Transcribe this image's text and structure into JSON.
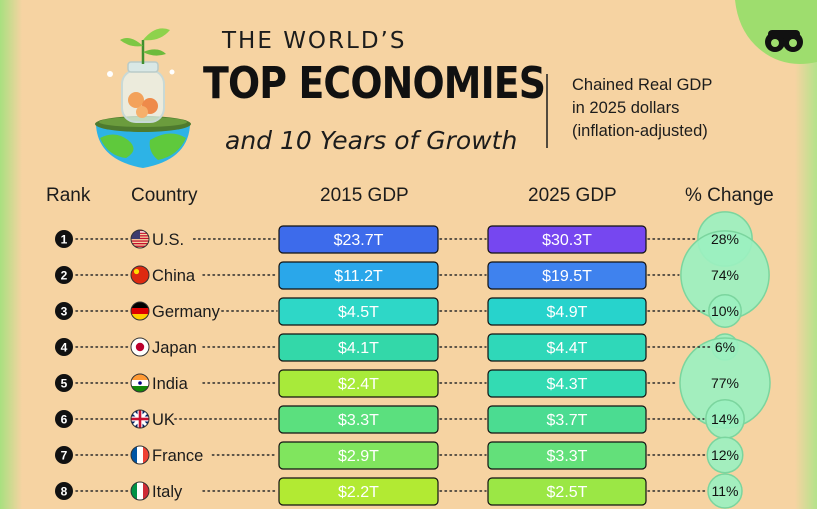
{
  "title": {
    "line1": "THE WORLD’S",
    "line2": "TOP ECONOMIES",
    "line3": "and 10 Years of Growth"
  },
  "note": {
    "line1": "Chained Real GDP",
    "line2": "in 2025 dollars",
    "line3": "(inflation-adjusted)"
  },
  "headers": {
    "rank": "Rank",
    "country": "Country",
    "gdp2015": "2015 GDP",
    "gdp2025": "2025 GDP",
    "change": "% Change"
  },
  "colors": {
    "background": "#F6D3A2",
    "bubble": "#9BF0C0",
    "bubble_ring": "#7BD59E",
    "dark_text": "#1c1c1c"
  },
  "chart_data": {
    "type": "table",
    "columns": [
      "Rank",
      "Country",
      "2015 GDP",
      "2025 GDP",
      "% Change"
    ],
    "rows": [
      {
        "rank": "1",
        "country": "U.S.",
        "gdp2015": 23.7,
        "gdp2015_label": "$23.7T",
        "gdp2025": 30.3,
        "gdp2025_label": "$30.3T",
        "change": 28,
        "change_label": "28%",
        "flag": "us-flag-icon",
        "c2015": "#3D6BEB",
        "c2025": "#7647F0"
      },
      {
        "rank": "2",
        "country": "China",
        "gdp2015": 11.2,
        "gdp2015_label": "$11.2T",
        "gdp2025": 19.5,
        "gdp2025_label": "$19.5T",
        "change": 74,
        "change_label": "74%",
        "flag": "china-flag-icon",
        "c2015": "#2AA7EA",
        "c2025": "#3F82EE"
      },
      {
        "rank": "3",
        "country": "Germany",
        "gdp2015": 4.5,
        "gdp2015_label": "$4.5T",
        "gdp2025": 4.9,
        "gdp2025_label": "$4.9T",
        "change": 10,
        "change_label": "10%",
        "flag": "germany-flag-icon",
        "c2015": "#2ED7C7",
        "c2025": "#27D3CC"
      },
      {
        "rank": "4",
        "country": "Japan",
        "gdp2015": 4.1,
        "gdp2015_label": "$4.1T",
        "gdp2025": 4.4,
        "gdp2025_label": "$4.4T",
        "change": 6,
        "change_label": "6%",
        "flag": "japan-flag-icon",
        "c2015": "#33D8A9",
        "c2025": "#2FD8B9"
      },
      {
        "rank": "5",
        "country": "India",
        "gdp2015": 2.4,
        "gdp2015_label": "$2.4T",
        "gdp2025": 4.3,
        "gdp2025_label": "$4.3T",
        "change": 77,
        "change_label": "77%",
        "flag": "india-flag-icon",
        "c2015": "#A8EA3A",
        "c2025": "#33DBB3"
      },
      {
        "rank": "6",
        "country": "UK",
        "gdp2015": 3.3,
        "gdp2015_label": "$3.3T",
        "gdp2025": 3.7,
        "gdp2025_label": "$3.7T",
        "change": 14,
        "change_label": "14%",
        "flag": "uk-flag-icon",
        "c2015": "#5BE07E",
        "c2025": "#4BDC91"
      },
      {
        "rank": "7",
        "country": "France",
        "gdp2015": 2.9,
        "gdp2015_label": "$2.9T",
        "gdp2025": 3.3,
        "gdp2025_label": "$3.3T",
        "change": 12,
        "change_label": "12%",
        "flag": "france-flag-icon",
        "c2015": "#80E55E",
        "c2025": "#63E07A"
      },
      {
        "rank": "8",
        "country": "Italy",
        "gdp2015": 2.2,
        "gdp2015_label": "$2.2T",
        "gdp2025": 2.5,
        "gdp2025_label": "$2.5T",
        "change": 11,
        "change_label": "11%",
        "flag": "italy-flag-icon",
        "c2015": "#B2EA33",
        "c2025": "#9BE745"
      }
    ]
  }
}
